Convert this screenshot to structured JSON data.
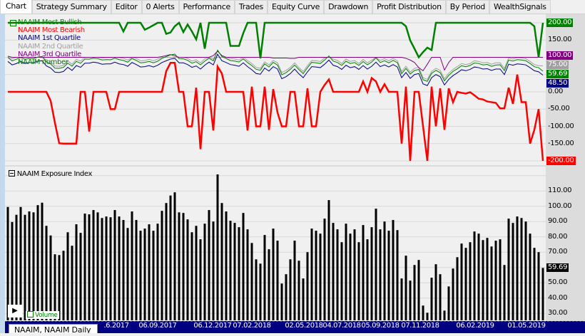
{
  "tabs": [
    "Chart",
    "Strategy Summary",
    "Editor",
    "0 Alerts",
    "Performance",
    "Trades",
    "Equity Curve",
    "Drawdown",
    "Profit Distribution",
    "By Period",
    "WealthSignals"
  ],
  "upper_legend": [
    {
      "label": "NAAIM Most Bullish",
      "color": "#008000"
    },
    {
      "label": "NAAIM Most Bearish",
      "color": "#ff0000"
    },
    {
      "label": "NAAIM 1st Quartile",
      "color": "#000080"
    },
    {
      "label": "NAAIM 2nd Quartile",
      "color": "#a0a0a0"
    },
    {
      "label": "NAAIM 3rd Quartile",
      "color": "#800080"
    },
    {
      "label": "NAAIM number",
      "color": "#008000"
    }
  ],
  "lower_title": "NAAIM Exposure Index",
  "upper_axis": [
    "150.00",
    "0.00",
    "-50.00",
    "-100.00",
    "-150.00"
  ],
  "upper_value_boxes": [
    {
      "text": "200.00",
      "color": "#008000"
    },
    {
      "text": "100.00",
      "color": "#800080"
    },
    {
      "text": "75.00",
      "color": "#a0a0a0"
    },
    {
      "text": "48.50",
      "color": "#000080"
    },
    {
      "text": "59.69",
      "color": "#008000"
    },
    {
      "text": "-200.00",
      "color": "#ff0000"
    }
  ],
  "lower_axis": [
    "110.00",
    "100.00",
    "90.00",
    "80.00",
    "70.00",
    "50.00",
    "40.00",
    "30.00"
  ],
  "lower_value_box": "59.69",
  "bottom_value_box": "59.69",
  "volume_label": "Volume",
  "symbol_label": "NAAIM, NAAIM Daily",
  "chart_data": [
    {
      "type": "line",
      "title": "",
      "legend_placement": "top-left",
      "yrange": [
        -200,
        200
      ],
      "x_ticks": [
        ".6.2017",
        "06.09.2017",
        "06.12.2017",
        "07.02.2018",
        "02.05.2018",
        "04.07.2018",
        "05.09.2018",
        "07.11.2018",
        "06.02.2019",
        "01.05.2019"
      ],
      "series": [
        {
          "name": "NAAIM Most Bullish",
          "color": "#008000",
          "values": [
            200,
            200,
            200,
            200,
            200,
            200,
            200,
            200,
            200,
            200,
            200,
            200,
            200,
            200,
            200,
            200,
            200,
            200,
            200,
            200,
            200,
            200,
            200,
            200,
            200,
            200,
            200,
            175,
            200,
            200,
            200,
            200,
            180,
            186,
            193,
            200,
            200,
            168,
            172,
            190,
            200,
            173,
            195,
            175,
            152,
            200,
            125,
            200,
            200,
            200,
            200,
            200,
            133,
            133,
            133,
            170,
            200,
            200,
            200,
            97,
            200,
            200,
            200,
            200,
            200,
            200,
            200,
            200,
            200,
            200,
            200,
            200,
            200,
            200,
            200,
            200,
            200,
            200,
            200,
            200,
            200,
            200,
            200,
            200,
            200,
            200,
            200,
            200,
            200,
            200,
            200,
            200,
            200,
            190,
            149,
            125,
            100,
            115,
            128,
            121,
            200,
            200,
            200,
            200,
            200,
            200,
            200,
            200,
            200,
            200,
            200,
            200,
            200,
            200,
            200,
            200,
            200,
            200,
            200,
            200,
            200,
            200,
            200,
            190,
            100,
            200
          ]
        },
        {
          "name": "NAAIM Most Bearish",
          "color": "#ff0000",
          "values": [
            0,
            0,
            0,
            0,
            0,
            0,
            0,
            0,
            0,
            0,
            -26,
            -90,
            -149,
            -150,
            -150,
            -150,
            -150,
            0,
            0,
            -115,
            0,
            0,
            0,
            0,
            -50,
            -50,
            0,
            0,
            0,
            0,
            0,
            0,
            0,
            0,
            0,
            0,
            0,
            60,
            84,
            84,
            0,
            0,
            -100,
            -100,
            12,
            -166,
            0,
            0,
            -112,
            73,
            53,
            0,
            0,
            0,
            0,
            0,
            -112,
            15,
            -100,
            -100,
            15,
            -110,
            8,
            -60,
            -100,
            -100,
            0,
            0,
            -100,
            -100,
            10,
            -100,
            -100,
            0,
            20,
            36,
            0,
            0,
            0,
            0,
            0,
            0,
            0,
            30,
            0,
            40,
            30,
            0,
            22,
            0,
            0,
            0,
            -150,
            15,
            -200,
            0,
            0,
            -100,
            -200,
            15,
            -100,
            10,
            -110,
            10,
            -30,
            0,
            -3,
            -5,
            -1,
            -10,
            -20,
            -22,
            -28,
            -30,
            -32,
            -48,
            -48,
            12,
            -35,
            50,
            -30,
            -30,
            -150,
            -110,
            -50,
            -200
          ]
        },
        {
          "name": "NAAIM 1st Quartile",
          "color": "#000080",
          "values": [
            88,
            78,
            82,
            88,
            82,
            85,
            84,
            89,
            90,
            75,
            69,
            57,
            56,
            59,
            71,
            62,
            76,
            71,
            83,
            83,
            86,
            84,
            80,
            81,
            81,
            86,
            81,
            79,
            74,
            85,
            79,
            72,
            73,
            76,
            72,
            77,
            85,
            90,
            95,
            97,
            84,
            84,
            79,
            71,
            75,
            66,
            77,
            86,
            78,
            109,
            90,
            85,
            79,
            77,
            74,
            84,
            73,
            64,
            53,
            51,
            69,
            60,
            73,
            66,
            38,
            44,
            53,
            66,
            52,
            41,
            58,
            73,
            72,
            70,
            80,
            92,
            77,
            73,
            65,
            77,
            70,
            73,
            65,
            76,
            66,
            74,
            86,
            73,
            78,
            72,
            79,
            72,
            41,
            56,
            39,
            50,
            53,
            23,
            18,
            41,
            50,
            44,
            20,
            36,
            47,
            55,
            64,
            61,
            65,
            72,
            70,
            66,
            67,
            62,
            66,
            66,
            50,
            80,
            77,
            81,
            80,
            78,
            70,
            61,
            58,
            48.5
          ]
        },
        {
          "name": "NAAIM 2nd Quartile",
          "color": "#a0a0a0",
          "values": [
            100,
            96,
            100,
            100,
            100,
            100,
            100,
            100,
            100,
            93,
            87,
            75,
            74,
            77,
            89,
            80,
            94,
            89,
            100,
            100,
            100,
            100,
            98,
            99,
            99,
            100,
            99,
            97,
            92,
            100,
            97,
            90,
            91,
            94,
            90,
            95,
            100,
            100,
            100,
            100,
            100,
            100,
            97,
            89,
            93,
            84,
            95,
            100,
            96,
            100,
            100,
            100,
            96,
            95,
            92,
            100,
            91,
            82,
            71,
            68,
            87,
            78,
            91,
            84,
            56,
            62,
            71,
            84,
            70,
            59,
            76,
            91,
            90,
            88,
            98,
            100,
            95,
            91,
            82,
            95,
            88,
            91,
            82,
            94,
            84,
            92,
            100,
            91,
            96,
            90,
            97,
            90,
            59,
            74,
            57,
            68,
            71,
            41,
            36,
            59,
            68,
            62,
            38,
            54,
            65,
            73,
            82,
            79,
            82,
            90,
            88,
            84,
            85,
            80,
            84,
            84,
            68,
            98,
            95,
            99,
            98,
            96,
            88,
            79,
            76,
            75
          ]
        },
        {
          "name": "NAAIM 3rd Quartile",
          "color": "#800080",
          "values": [
            103,
            100,
            100,
            100,
            100,
            100,
            100,
            100,
            100,
            100,
            100,
            100,
            100,
            100,
            100,
            100,
            100,
            100,
            100,
            100,
            100,
            100,
            100,
            100,
            100,
            100,
            100,
            100,
            100,
            100,
            100,
            100,
            100,
            100,
            100,
            100,
            102,
            105,
            108,
            104,
            100,
            100,
            100,
            100,
            100,
            100,
            100,
            100,
            105,
            118,
            105,
            100,
            100,
            100,
            100,
            100,
            100,
            100,
            100,
            100,
            100,
            100,
            98,
            98,
            98,
            98,
            97,
            97,
            100,
            100,
            100,
            100,
            100,
            100,
            100,
            100,
            100,
            100,
            100,
            100,
            100,
            100,
            100,
            100,
            100,
            100,
            100,
            100,
            100,
            100,
            100,
            100,
            100,
            97,
            92,
            85,
            70,
            61,
            80,
            100,
            100,
            100,
            63,
            85,
            100,
            100,
            100,
            100,
            100,
            100,
            100,
            100,
            100,
            100,
            100,
            100,
            100,
            100,
            100,
            100,
            100,
            100,
            100,
            100,
            100,
            100
          ]
        },
        {
          "name": "NAAIM number",
          "color": "#008000",
          "values": "see exposure"
        }
      ]
    },
    {
      "type": "bar",
      "title": "NAAIM Exposure Index",
      "yrange": [
        25,
        120
      ],
      "last_value": 59.69,
      "values": [
        99.5,
        89.7,
        94.4,
        99.5,
        94.4,
        96.6,
        96.0,
        100.7,
        102.3,
        87.2,
        80.9,
        68.6,
        68.1,
        70.9,
        83.0,
        74.2,
        88.2,
        82.6,
        95.2,
        94.7,
        97.5,
        96.0,
        92.3,
        93.3,
        92.8,
        97.5,
        93.3,
        91.0,
        85.8,
        96.6,
        91.0,
        84.0,
        85.4,
        88.2,
        84.0,
        88.6,
        97.0,
        102.1,
        107.0,
        109.1,
        96.0,
        95.6,
        91.4,
        83.0,
        87.2,
        78.4,
        88.6,
        97.5,
        90.0,
        120.8,
        102.1,
        96.6,
        90.5,
        89.1,
        86.3,
        95.6,
        84.9,
        76.0,
        65.3,
        62.5,
        81.2,
        71.9,
        85.4,
        77.5,
        49.5,
        55.6,
        65.3,
        77.5,
        64.4,
        52.8,
        70.0,
        85.4,
        84.0,
        82.1,
        91.9,
        104.0,
        89.1,
        84.9,
        76.5,
        88.6,
        82.1,
        84.9,
        76.5,
        87.7,
        78.4,
        86.3,
        98.4,
        84.9,
        90.0,
        84.0,
        91.0,
        84.4,
        52.8,
        67.7,
        51.4,
        61.6,
        64.9,
        35.1,
        30.4,
        53.3,
        62.1,
        55.6,
        31.8,
        47.6,
        59.3,
        66.7,
        75.6,
        72.8,
        76.5,
        83.5,
        82.1,
        77.9,
        79.3,
        73.7,
        77.5,
        78.4,
        61.6,
        91.9,
        89.1,
        93.3,
        92.3,
        90.0,
        82.1,
        72.8,
        70.0,
        59.69
      ]
    }
  ]
}
